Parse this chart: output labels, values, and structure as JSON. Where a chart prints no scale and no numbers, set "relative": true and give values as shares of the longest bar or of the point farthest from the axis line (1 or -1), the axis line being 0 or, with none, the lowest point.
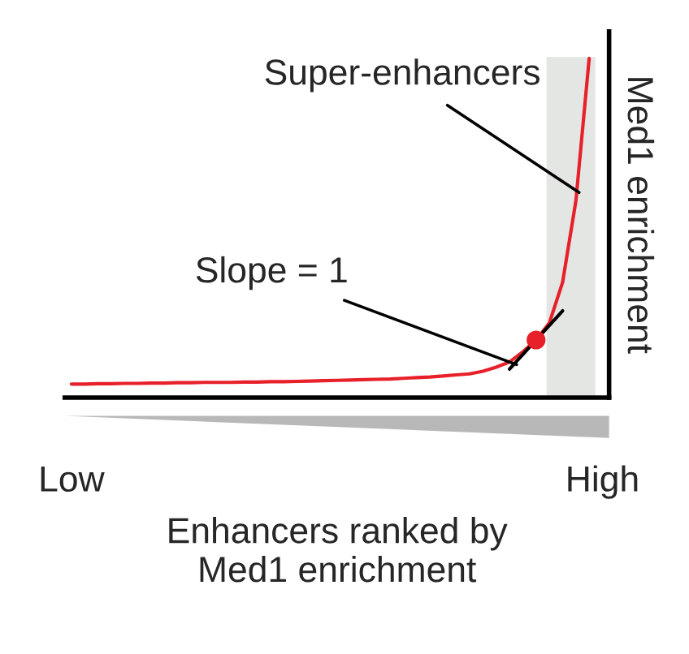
{
  "chart_data": {
    "type": "line",
    "relative": true,
    "xlabel": "Enhancers ranked by\nMed1 enrichment",
    "ylabel": "Med1 enrichment",
    "categories": [
      "Low",
      null,
      null,
      null,
      null,
      null,
      null,
      null,
      null,
      null,
      null,
      null,
      null,
      null,
      null,
      null,
      null,
      null,
      null,
      null,
      null,
      null,
      null,
      null,
      null,
      null,
      null,
      null,
      null,
      null,
      null,
      null,
      null,
      null,
      null,
      null,
      null,
      null,
      null,
      null,
      "High"
    ],
    "tick_labels": "x",
    "series": [
      {
        "color": "#e8202a",
        "values": [
          0.04,
          0.04,
          0.041,
          0.041,
          0.042,
          0.042,
          0.043,
          0.043,
          0.044,
          0.044,
          0.045,
          0.045,
          0.045,
          0.046,
          0.046,
          0.047,
          0.047,
          0.048,
          0.049,
          0.05,
          0.051,
          0.052,
          0.053,
          0.054,
          0.055,
          0.057,
          0.059,
          0.061,
          0.064,
          0.067,
          0.07,
          0.078,
          0.09,
          0.105,
          0.135,
          0.17,
          0.22,
          0.34,
          0.58,
          1.0,
          null
        ]
      },
      {
        "type": "line",
        "color": "#000000",
        "values": [
          null,
          null,
          null,
          null,
          null,
          null,
          null,
          null,
          null,
          null,
          null,
          null,
          null,
          null,
          null,
          null,
          null,
          null,
          null,
          null,
          null,
          null,
          null,
          null,
          null,
          null,
          null,
          null,
          null,
          null,
          null,
          null,
          null,
          0.084,
          null,
          null,
          null,
          0.256,
          null,
          null,
          null
        ]
      },
      {
        "type": "scatter",
        "color": "#e8202a",
        "values": [
          null,
          null,
          null,
          null,
          null,
          null,
          null,
          null,
          null,
          null,
          null,
          null,
          null,
          null,
          null,
          null,
          null,
          null,
          null,
          null,
          null,
          null,
          null,
          null,
          null,
          null,
          null,
          null,
          null,
          null,
          null,
          null,
          null,
          null,
          null,
          0.17,
          null,
          null,
          null,
          null,
          null
        ]
      }
    ],
    "annotations": [
      "Super-enhancers",
      "Slope = 1"
    ]
  }
}
